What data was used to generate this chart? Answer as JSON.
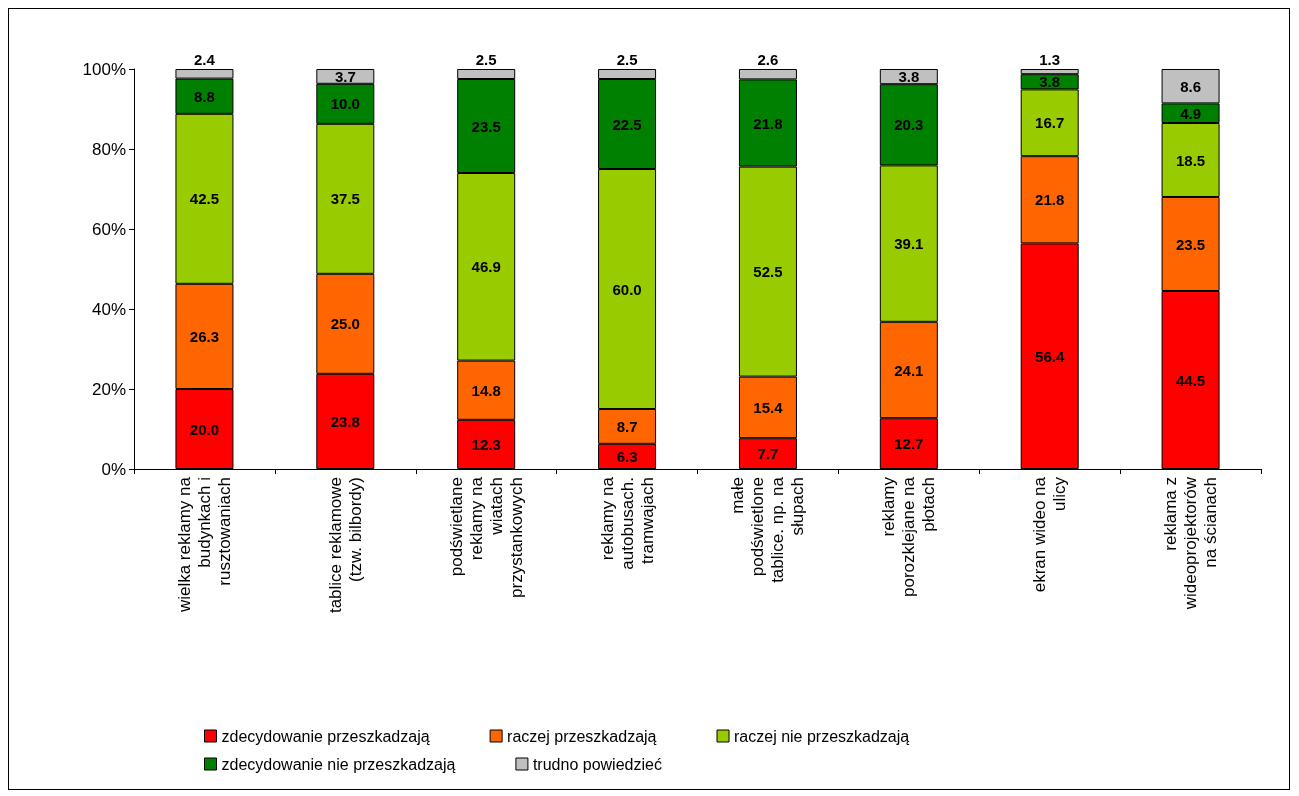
{
  "chart_data": {
    "type": "bar",
    "stacked": true,
    "categories": [
      "wielka reklamy na\nbudynkach i\nrusztowaniach",
      "tablice reklamowe\n(tzw. bilbordy)",
      "podświetlane\nreklamy na\nwiatach\nprzystankowych",
      "reklamy na\nautobusach.\ntramwajach",
      "małe\npodświetlone\ntablice. np. na\nsłupach",
      "reklamy\nporozklejane na\npłotach",
      "ekran wideo na\nulicy",
      "reklama z\nwideoprojektorów\nna ścianach"
    ],
    "series": [
      {
        "name": "zdecydowanie przeszkadzają",
        "color": "#ff0000",
        "values": [
          20.0,
          23.8,
          12.3,
          6.3,
          7.7,
          12.7,
          56.4,
          44.5
        ],
        "value_labels": [
          "20.0",
          "23.8",
          "12.3",
          "6.3",
          "7.7",
          "12.7",
          "56.4",
          "44.5"
        ]
      },
      {
        "name": "raczej przeszkadzają",
        "color": "#ff6600",
        "values": [
          26.3,
          25.0,
          14.8,
          8.7,
          15.4,
          24.1,
          21.8,
          23.5
        ],
        "value_labels": [
          "26.3",
          "25.0",
          "14.8",
          "8.7",
          "15.4",
          "24.1",
          "21.8",
          "23.5"
        ]
      },
      {
        "name": "raczej nie przeszkadzają",
        "color": "#99cc00",
        "values": [
          42.5,
          37.5,
          46.9,
          60.0,
          52.5,
          39.1,
          16.7,
          18.5
        ],
        "value_labels": [
          "42.5",
          "37.5",
          "46.9",
          "60.0",
          "52.5",
          "39.1",
          "16.7",
          "18.5"
        ]
      },
      {
        "name": "zdecydowanie nie przeszkadzają",
        "color": "#008000",
        "values": [
          8.8,
          10.0,
          23.5,
          22.5,
          21.8,
          20.3,
          3.8,
          4.9
        ],
        "value_labels": [
          "8.8",
          "10.0",
          "23.5",
          "22.5",
          "21.8",
          "20.3",
          "3.8",
          "4.9"
        ]
      },
      {
        "name": "trudno powiedzieć",
        "color": "#c0c0c0",
        "values": [
          2.4,
          3.7,
          2.5,
          2.5,
          2.6,
          3.8,
          1.3,
          8.6
        ],
        "value_labels": [
          "2.4",
          "3.7",
          "2.5",
          "2.5",
          "2.6",
          "3.8",
          "1.3",
          "8.6"
        ]
      }
    ],
    "ylim": [
      0,
      100
    ],
    "yticks": [
      {
        "value": 0,
        "label": "0%"
      },
      {
        "value": 20,
        "label": "20%"
      },
      {
        "value": 40,
        "label": "40%"
      },
      {
        "value": 60,
        "label": "60%"
      },
      {
        "value": 80,
        "label": "80%"
      },
      {
        "value": 100,
        "label": "100%"
      }
    ],
    "grid": false,
    "legend": "bottom"
  }
}
